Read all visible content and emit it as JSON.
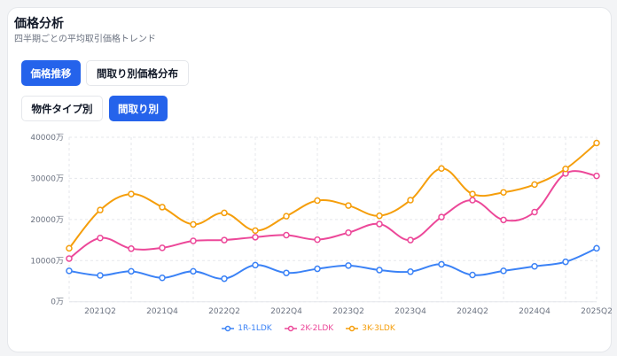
{
  "header": {
    "title": "価格分析",
    "subtitle": "四半期ごとの平均取引価格トレンド"
  },
  "tabs": [
    {
      "label": "価格推移",
      "active": true
    },
    {
      "label": "間取り別価格分布",
      "active": false
    }
  ],
  "subtabs": [
    {
      "label": "物件タイプ別",
      "active": false
    },
    {
      "label": "間取り別",
      "active": true
    }
  ],
  "chart_data": {
    "type": "line",
    "x": [
      "2021Q1",
      "2021Q2",
      "2021Q3",
      "2021Q4",
      "2022Q1",
      "2022Q2",
      "2022Q3",
      "2022Q4",
      "2023Q1",
      "2023Q2",
      "2023Q3",
      "2023Q4",
      "2024Q1",
      "2024Q2",
      "2024Q3",
      "2024Q4",
      "2025Q1",
      "2025Q2"
    ],
    "x_tick_labels": [
      "2021Q2",
      "2021Q4",
      "2022Q2",
      "2022Q4",
      "2023Q2",
      "2023Q4",
      "2024Q2",
      "2024Q4",
      "2025Q2"
    ],
    "y_ticks": [
      "0万",
      "10000万",
      "20000万",
      "30000万",
      "40000万"
    ],
    "ylim": [
      0,
      40000
    ],
    "grid": true,
    "legend_position": "bottom",
    "series": [
      {
        "name": "1R-1LDK",
        "color": "#3b82f6",
        "values": [
          7500,
          6400,
          7400,
          5800,
          7400,
          5600,
          8900,
          7000,
          8000,
          8800,
          7700,
          7300,
          9100,
          6500,
          7500,
          8600,
          9700,
          13000
        ]
      },
      {
        "name": "2K-2LDK",
        "color": "#ec4899",
        "values": [
          10500,
          15500,
          12900,
          13100,
          14800,
          15000,
          15700,
          16200,
          15100,
          16800,
          18900,
          15000,
          20600,
          24700,
          19900,
          21800,
          31200,
          30600
        ]
      },
      {
        "name": "3K-3LDK",
        "color": "#f59e0b",
        "values": [
          13000,
          22300,
          26200,
          23000,
          18800,
          21600,
          17300,
          20800,
          24600,
          23400,
          20900,
          24700,
          32400,
          26200,
          26600,
          28500,
          32300,
          38600
        ]
      }
    ]
  }
}
